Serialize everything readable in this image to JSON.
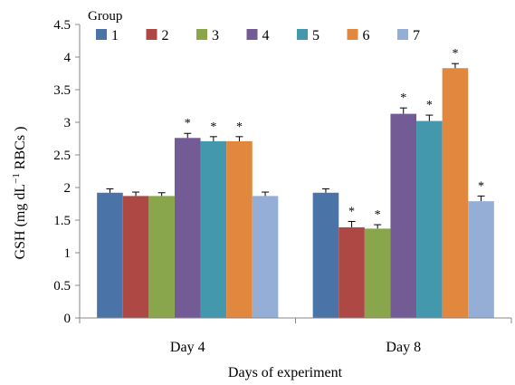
{
  "chart_data": {
    "type": "bar",
    "title": "",
    "xlabel": "Days of experiment",
    "ylabel_prefix": "GSH  (mg dL",
    "ylabel_sup": "−1",
    "ylabel_suffix": " RBCs )",
    "ylim": [
      0,
      4.5
    ],
    "yticks": [
      "0",
      "0.5",
      "1",
      "1.5",
      "2",
      "2.5",
      "3",
      "3.5",
      "4",
      "4.5"
    ],
    "legend_title": "Group",
    "legend_position": "top",
    "categories": [
      "Day 4",
      "Day 8"
    ],
    "series": [
      {
        "name": "1",
        "color": "#4a74a8",
        "values": [
          1.92,
          1.92
        ],
        "errors": [
          0.06,
          0.06
        ],
        "significant": [
          false,
          false
        ]
      },
      {
        "name": "2",
        "color": "#ad4844",
        "values": [
          1.87,
          1.39
        ],
        "errors": [
          0.06,
          0.09
        ],
        "significant": [
          false,
          true
        ]
      },
      {
        "name": "3",
        "color": "#8aa64c",
        "values": [
          1.87,
          1.37
        ],
        "errors": [
          0.05,
          0.06
        ],
        "significant": [
          false,
          true
        ]
      },
      {
        "name": "4",
        "color": "#735b96",
        "values": [
          2.76,
          3.13
        ],
        "errors": [
          0.07,
          0.09
        ],
        "significant": [
          true,
          true
        ]
      },
      {
        "name": "5",
        "color": "#4398ad",
        "values": [
          2.71,
          3.02
        ],
        "errors": [
          0.07,
          0.09
        ],
        "significant": [
          true,
          true
        ]
      },
      {
        "name": "6",
        "color": "#e2883e",
        "values": [
          2.71,
          3.83
        ],
        "errors": [
          0.07,
          0.07
        ],
        "significant": [
          true,
          true
        ]
      },
      {
        "name": "7",
        "color": "#95aed6",
        "values": [
          1.87,
          1.79
        ],
        "errors": [
          0.06,
          0.08
        ],
        "significant": [
          false,
          true
        ]
      }
    ],
    "significance_mark": "*",
    "grid": false
  }
}
